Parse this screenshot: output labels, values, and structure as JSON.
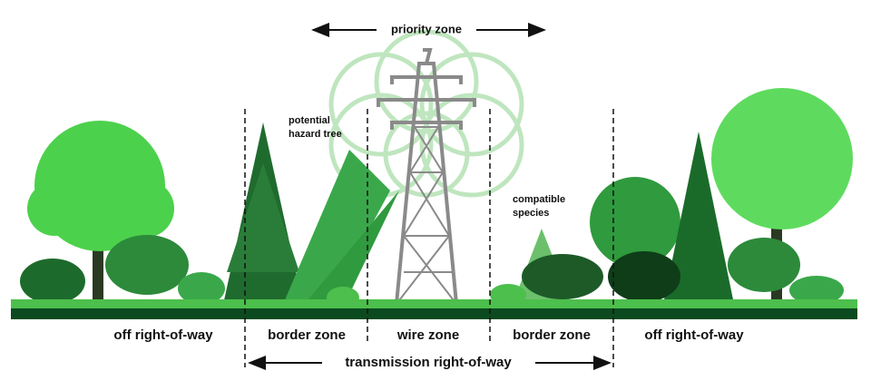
{
  "priority_zone": "priority zone",
  "hazard_tree": [
    "potential",
    "hazard tree"
  ],
  "compatible_species": [
    "compatible",
    "species"
  ],
  "zones": [
    "off right-of-way",
    "border zone",
    "wire zone",
    "border zone",
    "off right-of-way"
  ],
  "span": "transmission right-of-way"
}
